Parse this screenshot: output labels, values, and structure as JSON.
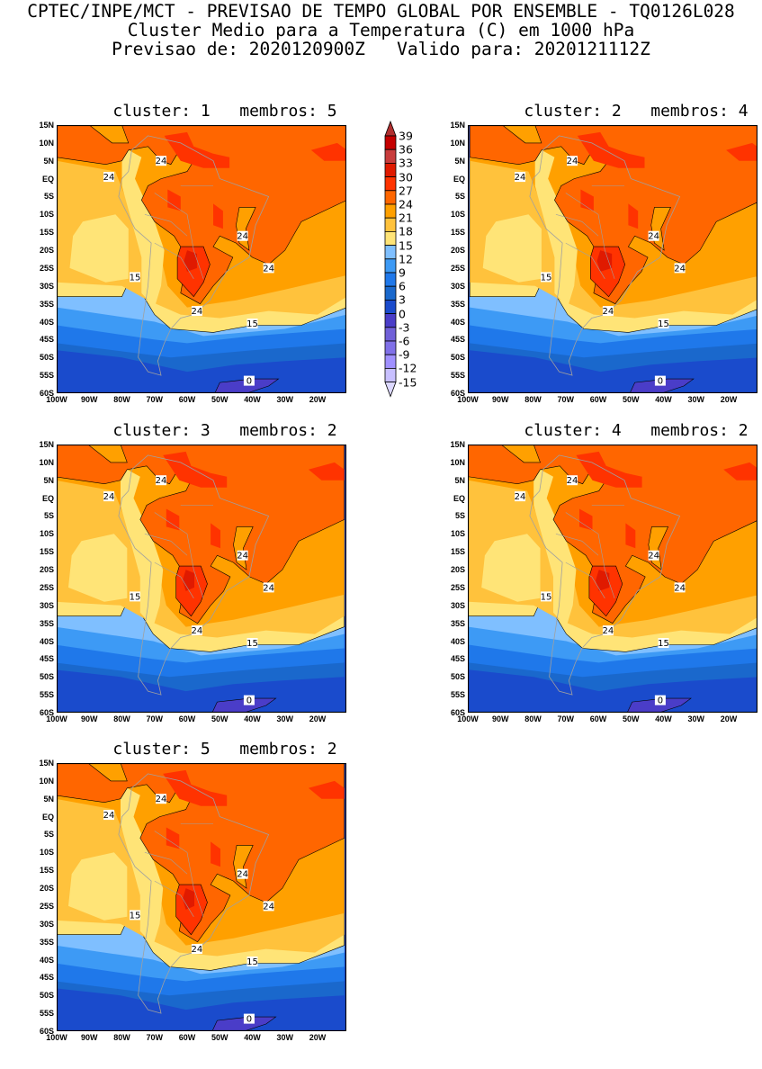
{
  "header": {
    "line1": "CPTEC/INPE/MCT - PREVISAO DE TEMPO GLOBAL POR ENSEMBLE - TQ0126L028",
    "line2": "Cluster Medio para a Temperatura (C) em 1000 hPa",
    "line3": "Previsao de: 2020120900Z   Valido para: 2020121112Z"
  },
  "axes": {
    "lat_labels": [
      "15N",
      "10N",
      "5N",
      "EQ",
      "5S",
      "10S",
      "15S",
      "20S",
      "25S",
      "30S",
      "35S",
      "40S",
      "45S",
      "50S",
      "55S",
      "60S"
    ],
    "lon_labels": [
      "100W",
      "90W",
      "80W",
      "70W",
      "60W",
      "50W",
      "40W",
      "30W",
      "20W"
    ]
  },
  "colorbar": {
    "labels": [
      "39",
      "36",
      "33",
      "30",
      "27",
      "24",
      "21",
      "18",
      "15",
      "12",
      "9",
      "6",
      "3",
      "0",
      "-3",
      "-6",
      "-9",
      "-12",
      "-15"
    ],
    "colors": [
      "#c40000",
      "#c83c3c",
      "#e01a00",
      "#ff3300",
      "#ff6600",
      "#ffa000",
      "#ffc23c",
      "#ffe477",
      "#7fbfff",
      "#3d9af5",
      "#1f78ea",
      "#1a68cc",
      "#1a4bcc",
      "#4a3dc8",
      "#7060d8",
      "#8070e8",
      "#a090ff",
      "#c8c0ff"
    ],
    "over_color": "#b03030",
    "under_color": "#dcd8ff"
  },
  "chart_data": {
    "type": "filled-contour-map",
    "variable": "Temperatura (C) em 1000 hPa",
    "lon_range": [
      "100W",
      "11W"
    ],
    "lat_range": [
      "15N",
      "60S"
    ],
    "panels": [
      {
        "title": "cluster: 1   membros: 5",
        "contour_labels": [
          "24",
          "24",
          "24",
          "24",
          "24",
          "15",
          "15",
          "0"
        ]
      },
      {
        "title": "cluster: 2   membros: 4",
        "contour_labels": [
          "24",
          "24",
          "24",
          "24",
          "24",
          "15",
          "15",
          "0"
        ]
      },
      {
        "title": "cluster: 3   membros: 2",
        "contour_labels": [
          "24",
          "24",
          "24",
          "24",
          "24",
          "15",
          "15",
          "0"
        ]
      },
      {
        "title": "cluster: 4   membros: 2",
        "contour_labels": [
          "24",
          "24",
          "24",
          "24",
          "24",
          "15",
          "15",
          "0"
        ]
      },
      {
        "title": "cluster: 5   membros: 2",
        "contour_labels": [
          "24",
          "24",
          "24",
          "24",
          "24",
          "15",
          "15",
          "0"
        ]
      }
    ]
  }
}
